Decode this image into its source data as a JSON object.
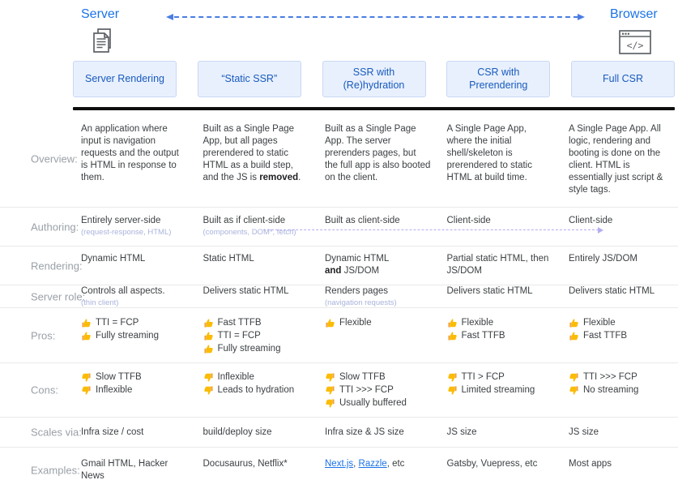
{
  "header": {
    "server_label": "Server",
    "browser_label": "Browser",
    "server_icon": "document-pages-icon",
    "browser_icon": "browser-window-icon",
    "column_titles": [
      "Server Rendering",
      "“Static SSR”",
      "SSR with\n(Re)hydration",
      "CSR with\nPrerendering",
      "Full CSR"
    ]
  },
  "colors": {
    "accent_blue": "#1a73e8",
    "box_bg": "#e8f0fe",
    "box_text": "#185abc",
    "label_gray": "#9aa0a6",
    "body_text": "#3c4043",
    "subtext_periwinkle": "#a9b3dc",
    "purple_arrow": "#b4adf0",
    "thumb_yellow": "#fbbc04",
    "black_bar": "#0e0e0e"
  },
  "table": {
    "rows": [
      {
        "id": "overview",
        "label": "Overview:",
        "cells": [
          {
            "parts": [
              {
                "t": "An application where input is navigation requests and the output is HTML in response to them."
              }
            ]
          },
          {
            "parts": [
              {
                "t": "Built as a Single Page App, but all pages prerendered to static HTML as a build step, and the JS is "
              },
              {
                "t": "removed",
                "b": true
              },
              {
                "t": "."
              }
            ]
          },
          {
            "parts": [
              {
                "t": "Built as a Single Page App. The server prerenders pages, but the full app is also booted on the client."
              }
            ]
          },
          {
            "parts": [
              {
                "t": "A Single Page App, where the initial shell/skeleton is prerendered to static HTML at build time."
              }
            ]
          },
          {
            "parts": [
              {
                "t": "A Single Page App. All logic, rendering and booting is done on the client. HTML is essentially just script & style tags."
              }
            ]
          }
        ]
      },
      {
        "id": "authoring",
        "label": "Authoring:",
        "client_side_arrow": true,
        "cells": [
          {
            "parts": [
              {
                "t": "Entirely server-side"
              }
            ],
            "sub": "(request-response, HTML)"
          },
          {
            "parts": [
              {
                "t": "Built as if client-side"
              }
            ],
            "sub": "(components, DOM*, fetch)"
          },
          {
            "parts": [
              {
                "t": "Built as client-side"
              }
            ]
          },
          {
            "parts": [
              {
                "t": "Client-side"
              }
            ]
          },
          {
            "parts": [
              {
                "t": "Client-side"
              }
            ]
          }
        ]
      },
      {
        "id": "rendering",
        "label": "Rendering:",
        "cells": [
          {
            "parts": [
              {
                "t": "Dynamic HTML"
              }
            ]
          },
          {
            "parts": [
              {
                "t": "Static HTML"
              }
            ]
          },
          {
            "parts": [
              {
                "t": "Dynamic HTML"
              },
              {
                "br": true
              },
              {
                "t": "and",
                "b": true
              },
              {
                "t": " JS/DOM"
              }
            ]
          },
          {
            "parts": [
              {
                "t": "Partial static HTML, then JS/DOM"
              }
            ]
          },
          {
            "parts": [
              {
                "t": "Entirely JS/DOM"
              }
            ]
          }
        ]
      },
      {
        "id": "server_role",
        "label": "Server role:",
        "cells": [
          {
            "parts": [
              {
                "t": "Controls all aspects."
              }
            ],
            "sub": "(thin client)"
          },
          {
            "parts": [
              {
                "t": "Delivers static HTML"
              }
            ]
          },
          {
            "parts": [
              {
                "t": "Renders pages"
              }
            ],
            "sub": "(navigation requests)"
          },
          {
            "parts": [
              {
                "t": "Delivers static HTML"
              }
            ]
          },
          {
            "parts": [
              {
                "t": "Delivers static HTML"
              }
            ]
          }
        ]
      },
      {
        "id": "pros",
        "label": "Pros:",
        "icon": "thumb-up",
        "cells": [
          {
            "items": [
              "TTI = FCP",
              "Fully streaming"
            ]
          },
          {
            "items": [
              "Fast TTFB",
              "TTI = FCP",
              "Fully streaming"
            ]
          },
          {
            "items": [
              "Flexible"
            ]
          },
          {
            "items": [
              "Flexible",
              "Fast TTFB"
            ]
          },
          {
            "items": [
              "Flexible",
              "Fast TTFB"
            ]
          }
        ]
      },
      {
        "id": "cons",
        "label": "Cons:",
        "icon": "thumb-down",
        "cells": [
          {
            "items": [
              "Slow TTFB",
              "Inflexible"
            ]
          },
          {
            "items": [
              "Inflexible",
              "Leads to hydration"
            ]
          },
          {
            "items": [
              "Slow TTFB",
              "TTI >>> FCP",
              "Usually buffered"
            ]
          },
          {
            "items": [
              "TTI > FCP",
              "Limited streaming"
            ]
          },
          {
            "items": [
              "TTI >>> FCP",
              "No streaming"
            ]
          }
        ]
      },
      {
        "id": "scales_via",
        "label": "Scales via:",
        "cells": [
          {
            "parts": [
              {
                "t": "Infra size / cost"
              }
            ]
          },
          {
            "parts": [
              {
                "t": "build/deploy size"
              }
            ]
          },
          {
            "parts": [
              {
                "t": "Infra size & JS size"
              }
            ]
          },
          {
            "parts": [
              {
                "t": "JS size"
              }
            ]
          },
          {
            "parts": [
              {
                "t": "JS size"
              }
            ]
          }
        ]
      },
      {
        "id": "examples",
        "label": "Examples:",
        "cells": [
          {
            "parts": [
              {
                "t": "Gmail HTML, Hacker News"
              }
            ]
          },
          {
            "parts": [
              {
                "t": "Docusaurus, Netflix*"
              }
            ]
          },
          {
            "parts": [
              {
                "t": "Next.js",
                "link": true
              },
              {
                "t": ", "
              },
              {
                "t": "Razzle",
                "link": true
              },
              {
                "t": ", etc"
              }
            ]
          },
          {
            "parts": [
              {
                "t": "Gatsby, Vuepress, etc"
              }
            ]
          },
          {
            "parts": [
              {
                "t": "Most apps"
              }
            ]
          }
        ]
      }
    ]
  }
}
